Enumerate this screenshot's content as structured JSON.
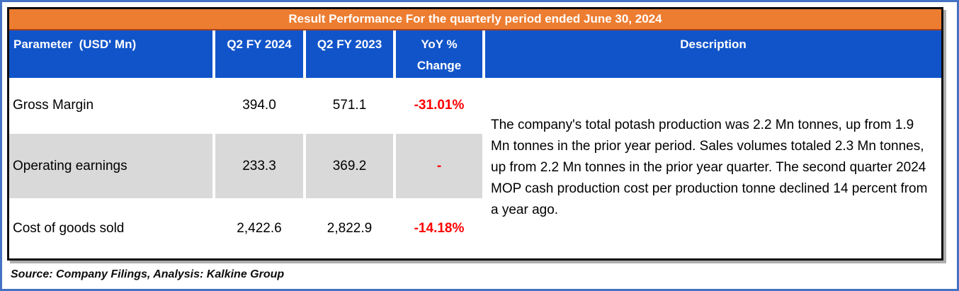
{
  "banner": {
    "title": "Result Performance For the quarterly period ended June 30, 2024"
  },
  "table": {
    "columns": [
      "Parameter  (USD' Mn)",
      "Q2 FY 2024",
      "Q2 FY 2023",
      "YoY % Change",
      "Description"
    ],
    "rows": [
      {
        "parameter": "Gross Margin",
        "q2_fy2024": "394.0",
        "q2_fy2023": "571.1",
        "yoy_change": "-31.01%"
      },
      {
        "parameter": "Operating earnings",
        "q2_fy2024": "233.3",
        "q2_fy2023": "369.2",
        "yoy_change": "-"
      },
      {
        "parameter": "Cost of goods sold",
        "q2_fy2024": "2,422.6",
        "q2_fy2023": "2,822.9",
        "yoy_change": "-14.18%"
      }
    ],
    "description": "The company's total potash production was 2.2 Mn tonnes, up from 1.9 Mn tonnes in the prior year period. Sales volumes totaled 2.3 Mn tonnes, up from 2.2 Mn tonnes in the prior year quarter. The second quarter 2024 MOP cash production cost per production tonne declined 14 percent from a year ago."
  },
  "source_note": "Source: Company Filings, Analysis: Kalkine Group",
  "colors": {
    "banner_orange": "#ED7D31",
    "header_blue": "#1154C9",
    "row_grey": "#D9D9D9",
    "negative_red": "#FF0000",
    "frame_blue": "#4472C4",
    "table_border_black": "#0D0D0D"
  }
}
